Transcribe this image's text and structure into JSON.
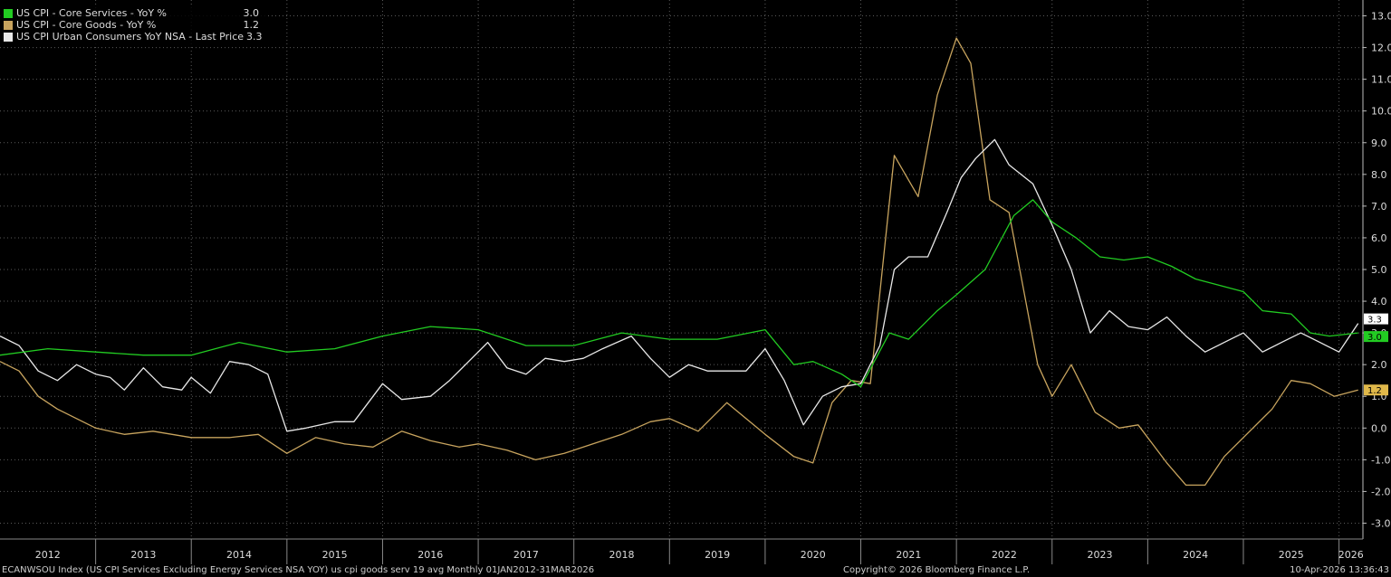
{
  "chart_data": {
    "type": "line",
    "title": "",
    "xlabel": "",
    "ylabel": "",
    "ylim": [
      -3.5,
      13.5
    ],
    "yticks": [
      13.0,
      12.0,
      11.0,
      10.0,
      9.0,
      8.0,
      7.0,
      6.0,
      5.0,
      4.0,
      3.0,
      2.0,
      1.0,
      0.0,
      -1.0,
      -2.0,
      -3.0
    ],
    "ytick_labels": [
      "13.0",
      "12.0",
      "11.0",
      "10.0",
      "9.0",
      "8.0",
      "7.0",
      "6.0",
      "5.0",
      "4.0",
      "3.0",
      "2.0",
      "1.0",
      "0.0",
      "-1.0",
      "-2.0",
      "-3.0"
    ],
    "x_range": [
      2012.0,
      2026.25
    ],
    "year_labels": [
      "2012",
      "2013",
      "2014",
      "2015",
      "2016",
      "2017",
      "2018",
      "2019",
      "2020",
      "2021",
      "2022",
      "2023",
      "2024",
      "2025",
      "2026"
    ],
    "grid": true,
    "legend_position": "top-left",
    "series": [
      {
        "name": "US CPI - Core Services - YoY %",
        "last_value": "3.0",
        "color": "#22cc22",
        "points": [
          [
            2012.0,
            2.3
          ],
          [
            2012.5,
            2.5
          ],
          [
            2013.0,
            2.4
          ],
          [
            2013.5,
            2.3
          ],
          [
            2014.0,
            2.3
          ],
          [
            2014.5,
            2.7
          ],
          [
            2015.0,
            2.4
          ],
          [
            2015.5,
            2.5
          ],
          [
            2016.0,
            2.9
          ],
          [
            2016.5,
            3.2
          ],
          [
            2017.0,
            3.1
          ],
          [
            2017.5,
            2.6
          ],
          [
            2018.0,
            2.6
          ],
          [
            2018.5,
            3.0
          ],
          [
            2019.0,
            2.8
          ],
          [
            2019.5,
            2.8
          ],
          [
            2020.0,
            3.1
          ],
          [
            2020.3,
            2.0
          ],
          [
            2020.5,
            2.1
          ],
          [
            2020.8,
            1.7
          ],
          [
            2021.0,
            1.3
          ],
          [
            2021.3,
            3.0
          ],
          [
            2021.5,
            2.8
          ],
          [
            2021.8,
            3.7
          ],
          [
            2022.0,
            4.2
          ],
          [
            2022.3,
            5.0
          ],
          [
            2022.6,
            6.7
          ],
          [
            2022.8,
            7.2
          ],
          [
            2023.0,
            6.5
          ],
          [
            2023.25,
            6.0
          ],
          [
            2023.5,
            5.4
          ],
          [
            2023.75,
            5.3
          ],
          [
            2024.0,
            5.4
          ],
          [
            2024.25,
            5.1
          ],
          [
            2024.5,
            4.7
          ],
          [
            2024.75,
            4.5
          ],
          [
            2025.0,
            4.3
          ],
          [
            2025.2,
            3.7
          ],
          [
            2025.5,
            3.6
          ],
          [
            2025.7,
            3.0
          ],
          [
            2025.9,
            2.9
          ],
          [
            2026.2,
            3.0
          ]
        ]
      },
      {
        "name": "US CPI - Core Goods - YoY %",
        "last_value": "1.2",
        "color": "#c8a45e",
        "points": [
          [
            2012.0,
            2.1
          ],
          [
            2012.2,
            1.8
          ],
          [
            2012.4,
            1.0
          ],
          [
            2012.6,
            0.6
          ],
          [
            2012.8,
            0.3
          ],
          [
            2013.0,
            0.0
          ],
          [
            2013.3,
            -0.2
          ],
          [
            2013.6,
            -0.1
          ],
          [
            2014.0,
            -0.3
          ],
          [
            2014.4,
            -0.3
          ],
          [
            2014.7,
            -0.2
          ],
          [
            2015.0,
            -0.8
          ],
          [
            2015.3,
            -0.3
          ],
          [
            2015.6,
            -0.5
          ],
          [
            2015.9,
            -0.6
          ],
          [
            2016.2,
            -0.1
          ],
          [
            2016.5,
            -0.4
          ],
          [
            2016.8,
            -0.6
          ],
          [
            2017.0,
            -0.5
          ],
          [
            2017.3,
            -0.7
          ],
          [
            2017.6,
            -1.0
          ],
          [
            2017.9,
            -0.8
          ],
          [
            2018.2,
            -0.5
          ],
          [
            2018.5,
            -0.2
          ],
          [
            2018.8,
            0.2
          ],
          [
            2019.0,
            0.3
          ],
          [
            2019.3,
            -0.1
          ],
          [
            2019.6,
            0.8
          ],
          [
            2019.8,
            0.3
          ],
          [
            2020.0,
            -0.2
          ],
          [
            2020.3,
            -0.9
          ],
          [
            2020.5,
            -1.1
          ],
          [
            2020.7,
            0.8
          ],
          [
            2020.9,
            1.5
          ],
          [
            2021.1,
            1.4
          ],
          [
            2021.35,
            8.6
          ],
          [
            2021.6,
            7.3
          ],
          [
            2021.8,
            10.5
          ],
          [
            2022.0,
            12.3
          ],
          [
            2022.15,
            11.5
          ],
          [
            2022.35,
            7.2
          ],
          [
            2022.55,
            6.8
          ],
          [
            2022.85,
            2.0
          ],
          [
            2023.0,
            1.0
          ],
          [
            2023.2,
            2.0
          ],
          [
            2023.45,
            0.5
          ],
          [
            2023.7,
            0.0
          ],
          [
            2023.9,
            0.1
          ],
          [
            2024.2,
            -1.1
          ],
          [
            2024.4,
            -1.8
          ],
          [
            2024.6,
            -1.8
          ],
          [
            2024.8,
            -0.9
          ],
          [
            2025.0,
            -0.3
          ],
          [
            2025.3,
            0.6
          ],
          [
            2025.5,
            1.5
          ],
          [
            2025.7,
            1.4
          ],
          [
            2025.95,
            1.0
          ],
          [
            2026.2,
            1.2
          ]
        ]
      },
      {
        "name": "US CPI Urban Consumers YoY NSA - Last Price",
        "last_value": "3.3",
        "color": "#e8e8e8",
        "points": [
          [
            2012.0,
            2.9
          ],
          [
            2012.2,
            2.6
          ],
          [
            2012.4,
            1.8
          ],
          [
            2012.6,
            1.5
          ],
          [
            2012.8,
            2.0
          ],
          [
            2013.0,
            1.7
          ],
          [
            2013.15,
            1.6
          ],
          [
            2013.3,
            1.2
          ],
          [
            2013.5,
            1.9
          ],
          [
            2013.7,
            1.3
          ],
          [
            2013.9,
            1.2
          ],
          [
            2014.0,
            1.6
          ],
          [
            2014.2,
            1.1
          ],
          [
            2014.4,
            2.1
          ],
          [
            2014.6,
            2.0
          ],
          [
            2014.8,
            1.7
          ],
          [
            2015.0,
            -0.1
          ],
          [
            2015.2,
            0.0
          ],
          [
            2015.5,
            0.2
          ],
          [
            2015.7,
            0.2
          ],
          [
            2016.0,
            1.4
          ],
          [
            2016.2,
            0.9
          ],
          [
            2016.5,
            1.0
          ],
          [
            2016.7,
            1.5
          ],
          [
            2016.9,
            2.1
          ],
          [
            2017.1,
            2.7
          ],
          [
            2017.3,
            1.9
          ],
          [
            2017.5,
            1.7
          ],
          [
            2017.7,
            2.2
          ],
          [
            2017.9,
            2.1
          ],
          [
            2018.1,
            2.2
          ],
          [
            2018.3,
            2.5
          ],
          [
            2018.6,
            2.9
          ],
          [
            2018.8,
            2.2
          ],
          [
            2019.0,
            1.6
          ],
          [
            2019.2,
            2.0
          ],
          [
            2019.4,
            1.8
          ],
          [
            2019.6,
            1.8
          ],
          [
            2019.8,
            1.8
          ],
          [
            2020.0,
            2.5
          ],
          [
            2020.2,
            1.5
          ],
          [
            2020.4,
            0.1
          ],
          [
            2020.6,
            1.0
          ],
          [
            2020.8,
            1.3
          ],
          [
            2021.0,
            1.4
          ],
          [
            2021.2,
            2.6
          ],
          [
            2021.35,
            5.0
          ],
          [
            2021.5,
            5.4
          ],
          [
            2021.7,
            5.4
          ],
          [
            2021.9,
            6.8
          ],
          [
            2022.05,
            7.9
          ],
          [
            2022.2,
            8.5
          ],
          [
            2022.4,
            9.1
          ],
          [
            2022.55,
            8.3
          ],
          [
            2022.8,
            7.7
          ],
          [
            2023.0,
            6.4
          ],
          [
            2023.2,
            5.0
          ],
          [
            2023.4,
            3.0
          ],
          [
            2023.6,
            3.7
          ],
          [
            2023.8,
            3.2
          ],
          [
            2024.0,
            3.1
          ],
          [
            2024.2,
            3.5
          ],
          [
            2024.4,
            2.9
          ],
          [
            2024.6,
            2.4
          ],
          [
            2024.8,
            2.7
          ],
          [
            2025.0,
            3.0
          ],
          [
            2025.2,
            2.4
          ],
          [
            2025.4,
            2.7
          ],
          [
            2025.6,
            3.0
          ],
          [
            2025.8,
            2.7
          ],
          [
            2026.0,
            2.4
          ],
          [
            2026.2,
            3.3
          ]
        ]
      }
    ]
  },
  "footer": {
    "left": "ECANWSOU Index (US CPI Services Excluding Energy Services NSA YOY) us cpi goods serv 19 avg Monthly 01JAN2012-31MAR2026",
    "center": "Copyright© 2026 Bloomberg Finance L.P.",
    "right": "10-Apr-2026 13:36:43"
  }
}
